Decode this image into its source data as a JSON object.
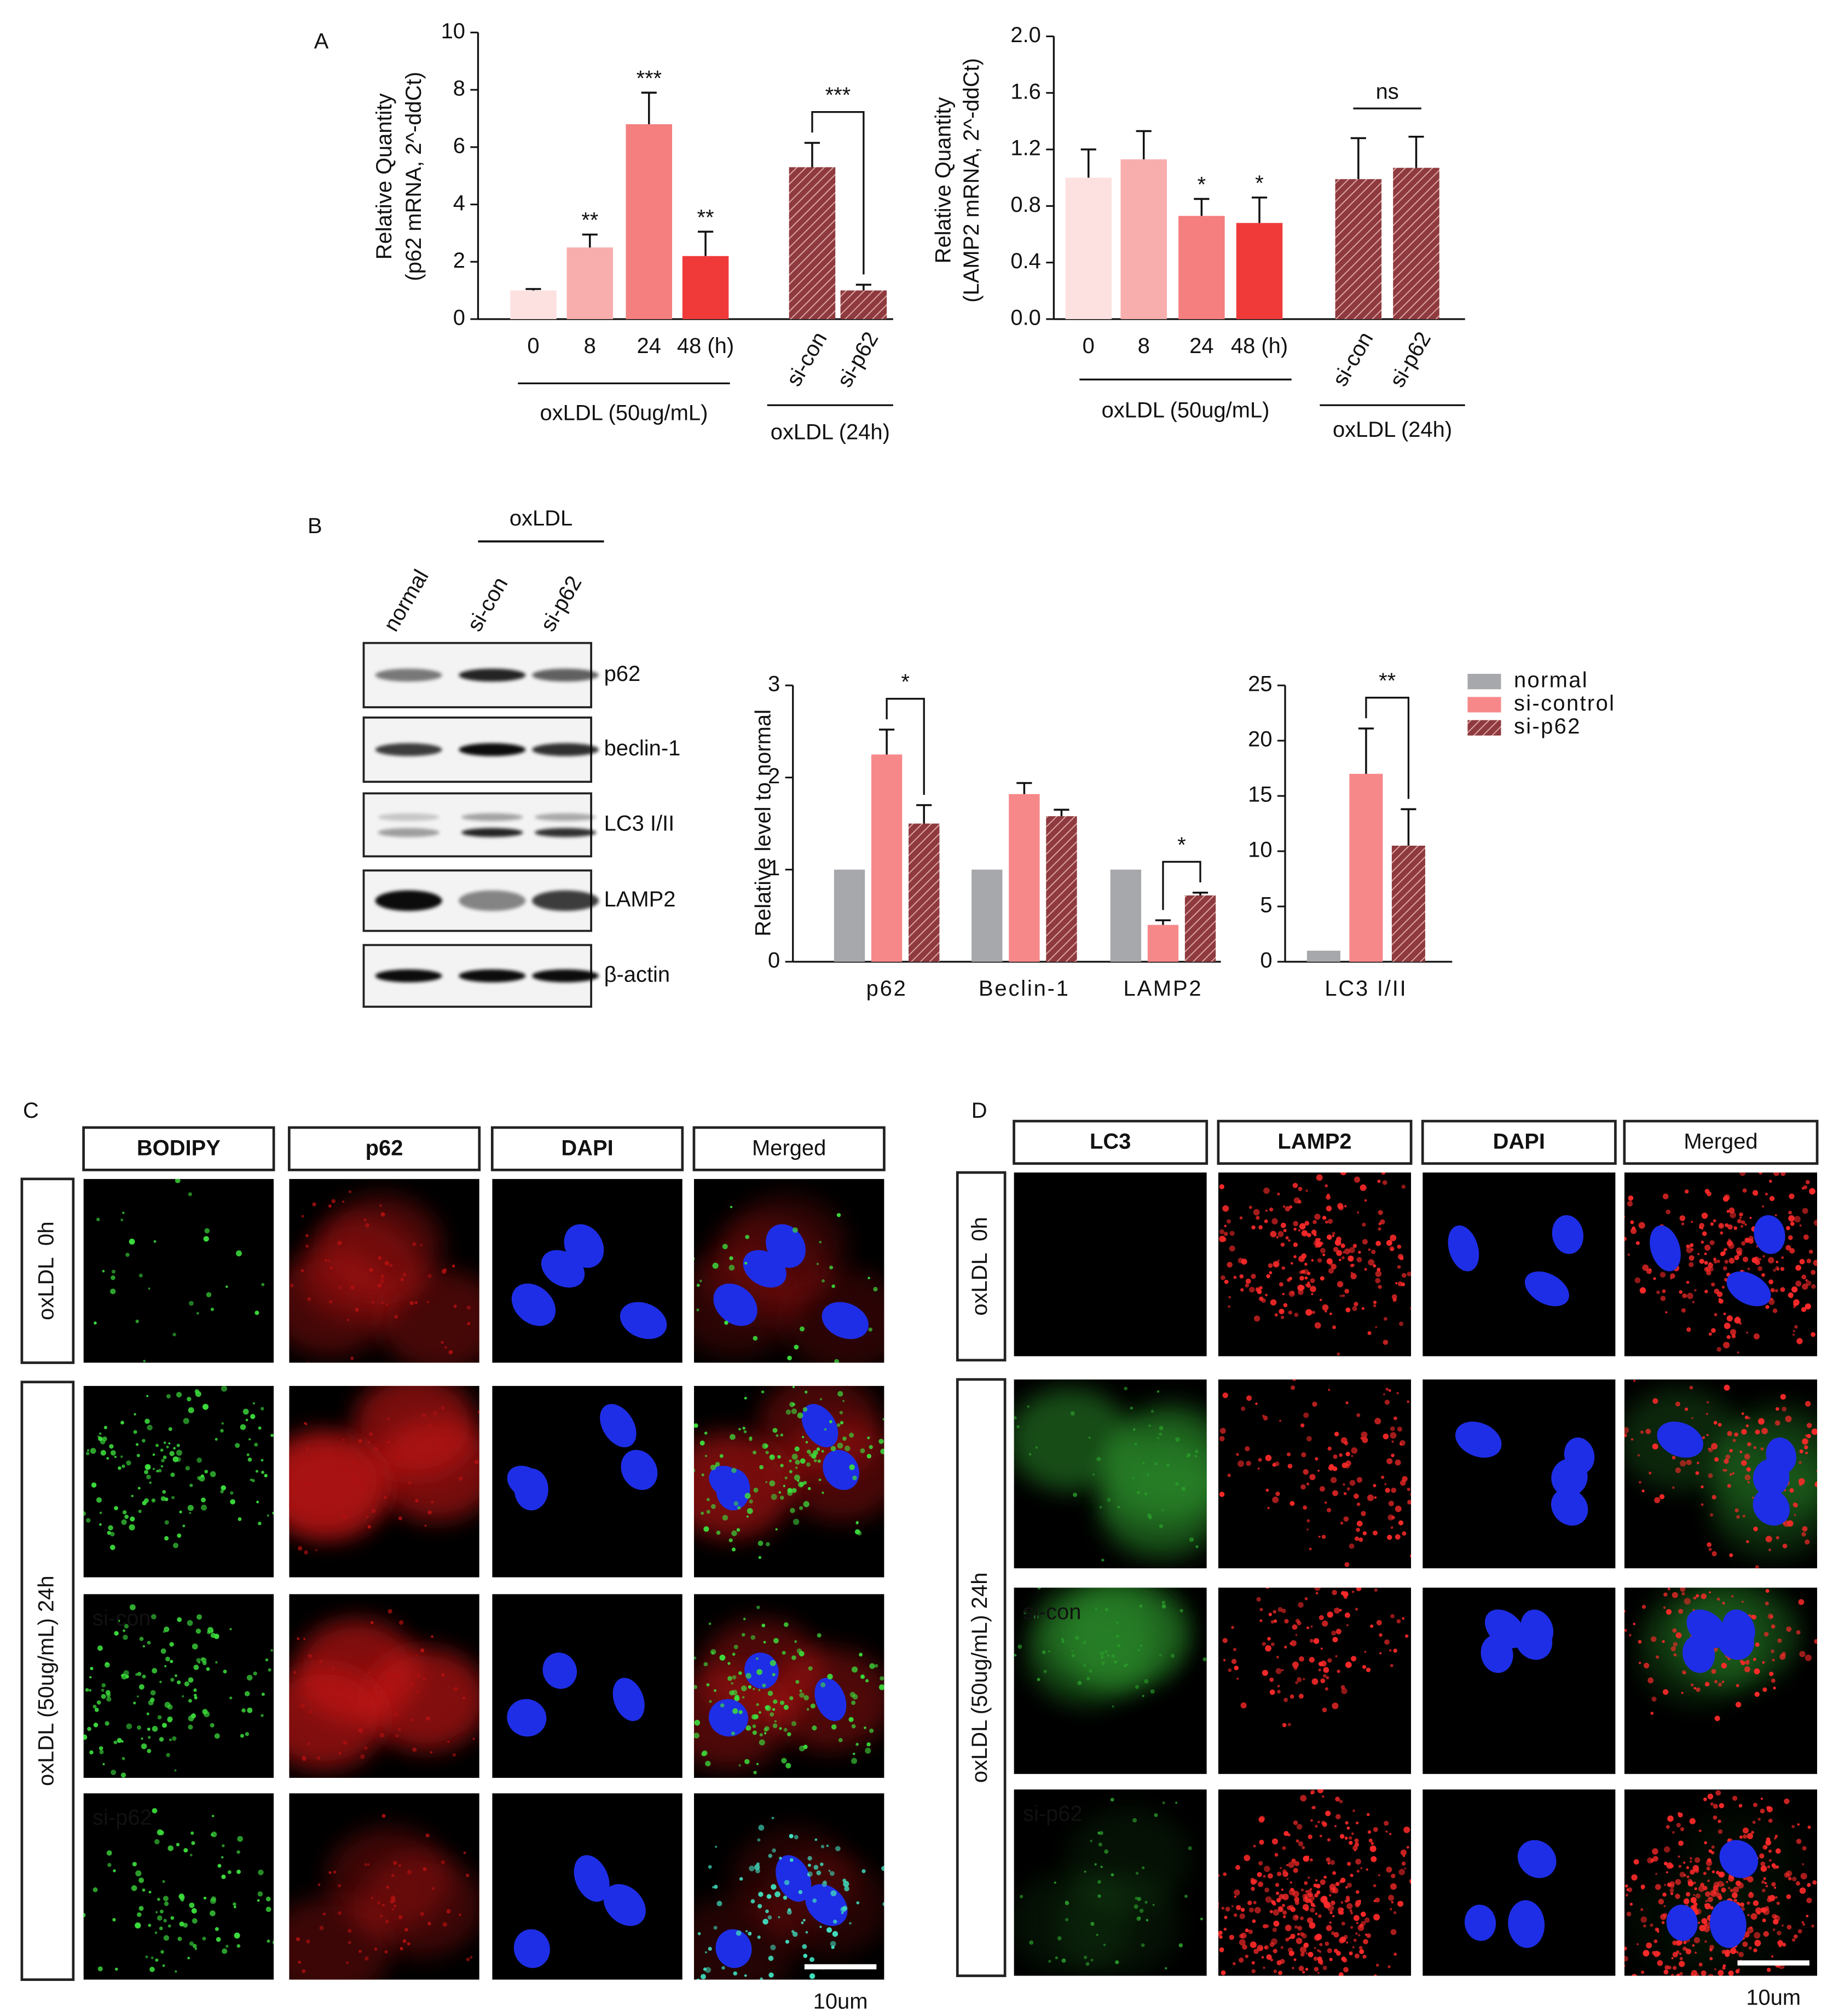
{
  "chart_data": [
    {
      "type": "bar",
      "ylabel": [
        "Relative Quantity",
        "(p62 mRNA, 2^-ddCt)"
      ],
      "categories": [
        "0",
        "8",
        "24",
        "48 (h)",
        "si-con",
        "si-p62"
      ],
      "values": [
        1,
        2.5,
        6.8,
        2.2,
        5.3,
        1.0
      ],
      "errors": [
        0.05,
        0.45,
        1.1,
        0.85,
        0.85,
        0.2
      ],
      "colors": [
        "#fde1e1",
        "#f9aeae",
        "#f57f7f",
        "#f03a3a",
        "#8e3a3e",
        "#8e3a3e"
      ],
      "hatched": [
        false,
        false,
        false,
        false,
        true,
        true
      ],
      "significance": [
        null,
        "**",
        "***",
        "**",
        null,
        null
      ],
      "comparison_labels": [
        "***"
      ],
      "group_labels": [
        "oxLDL (50ug/mL)",
        "oxLDL (24h)"
      ],
      "ylim": [
        0,
        10
      ],
      "yticks": [
        0,
        2,
        4,
        6,
        8,
        10
      ]
    },
    {
      "type": "bar",
      "ylabel": [
        "Relative Quantity",
        "(LAMP2 mRNA, 2^-ddCt)"
      ],
      "categories": [
        "0",
        "8",
        "24",
        "48 (h)",
        "si-con",
        "si-p62"
      ],
      "values": [
        1.0,
        1.13,
        0.73,
        0.68,
        0.99,
        1.07
      ],
      "errors": [
        0.2,
        0.2,
        0.12,
        0.18,
        0.29,
        0.22
      ],
      "colors": [
        "#fde1e1",
        "#f9aeae",
        "#f57f7f",
        "#f03a3a",
        "#8e3a3e",
        "#8e3a3e"
      ],
      "hatched": [
        false,
        false,
        false,
        false,
        true,
        true
      ],
      "significance": [
        null,
        null,
        "*",
        "*",
        null,
        null
      ],
      "comparison_labels": [
        "ns"
      ],
      "group_labels": [
        "oxLDL (50ug/mL)",
        "oxLDL (24h)"
      ],
      "ylim": [
        0,
        2
      ],
      "yticks": [
        {
          "value": 0,
          "label": "0.0"
        },
        0.4,
        0.8,
        1.2,
        1.6,
        {
          "value": 2,
          "label": "2.0"
        }
      ]
    },
    {
      "type": "bar",
      "ylabel": "Relative level to normal",
      "categories": [
        "p62",
        "Beclin-1",
        "LAMP2"
      ],
      "series": [
        {
          "color": "#a6a8ab",
          "values": [
            1,
            1,
            1
          ]
        },
        {
          "color": "#f7888a",
          "values": [
            2.25,
            1.82,
            0.4
          ],
          "errors": [
            0.27,
            0.12,
            0.05
          ]
        },
        {
          "color": "#8e3a3e",
          "hatched": true,
          "values": [
            1.5,
            1.58,
            0.72
          ],
          "errors": [
            0.2,
            0.07,
            0.03
          ]
        }
      ],
      "comparison_labels": [
        "*",
        "*"
      ],
      "ylim": [
        0,
        3
      ],
      "yticks": [
        0,
        1,
        2,
        3
      ]
    },
    {
      "type": "bar",
      "categories": [
        "LC3 I/II"
      ],
      "series": [
        {
          "name": "normal",
          "color": "#a6a8ab",
          "values": [
            1
          ]
        },
        {
          "name": "si-control",
          "color": "#f7888a",
          "values": [
            17
          ],
          "errors": [
            4.1
          ]
        },
        {
          "name": "si-p62",
          "color": "#8e3a3e",
          "hatched": true,
          "values": [
            10.5
          ],
          "errors": [
            3.3
          ]
        }
      ],
      "comparison_labels": [
        "**"
      ],
      "legend": "right",
      "ylim": [
        0,
        25
      ],
      "yticks": [
        0,
        5,
        10,
        15,
        20,
        25
      ]
    }
  ],
  "panel_labels": [
    "A",
    "B",
    "C",
    "D"
  ],
  "western_blot": {
    "group_label": "oxLDL",
    "lanes": [
      "normal",
      "si-con",
      "si-p62"
    ],
    "proteins": [
      "p62",
      "beclin-1",
      "LC3 I/II",
      "LAMP2",
      "β-actin"
    ]
  },
  "panel_c": {
    "channels": [
      "BODIPY",
      "p62",
      "DAPI",
      "Merged"
    ],
    "row_labels": [
      "oxLDL  0h",
      "oxLDL (50ug/mL) 24h"
    ],
    "conditions": [
      "si-con",
      "si-p62"
    ],
    "scale_bar": "10um"
  },
  "panel_d": {
    "channels": [
      "LC3",
      "LAMP2",
      "DAPI",
      "Merged"
    ],
    "row_labels": [
      "oxLDL  0h",
      "oxLDL (50ug/mL) 24h"
    ],
    "conditions": [
      "si-con",
      "si-p62"
    ],
    "scale_bar": "10um"
  }
}
